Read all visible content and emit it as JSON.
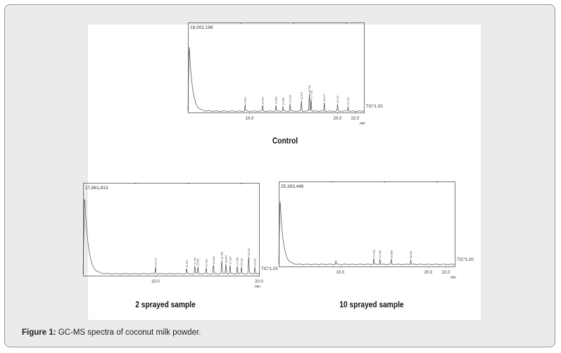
{
  "caption": {
    "label": "Figure 1:",
    "text": " GC-MS spectra of coconut milk powder."
  },
  "colors": {
    "frame_bg": "#ebebeb",
    "frame_border": "#9a9a9a",
    "trace": "#4a4a4a",
    "axis": "#555555"
  },
  "chart_data": [
    {
      "type": "line",
      "title": "Control",
      "max_label": "18,002,198",
      "scale_label": "TIC*1.00",
      "xunit": "min",
      "xlim": [
        3.0,
        23.0
      ],
      "xticks": [
        "10.0",
        "20.0",
        "22.0"
      ],
      "xtick_values": [
        10.0,
        20.0,
        22.0
      ],
      "ylim": [
        0,
        100
      ],
      "baseline": 1.5,
      "solvent_peak": 75,
      "peaks": [
        {
          "x": 9.5,
          "y": 7,
          "label": "9.613"
        },
        {
          "x": 11.5,
          "y": 6,
          "label": "11.533"
        },
        {
          "x": 13.0,
          "y": 6,
          "label": "13.062"
        },
        {
          "x": 13.8,
          "y": 5,
          "label": "13.896"
        },
        {
          "x": 14.6,
          "y": 8,
          "label": "14.615"
        },
        {
          "x": 15.9,
          "y": 11,
          "label": "15.876"
        },
        {
          "x": 16.8,
          "y": 19,
          "label": "16.783"
        },
        {
          "x": 17.0,
          "y": 13,
          "label": "17.011"
        },
        {
          "x": 18.5,
          "y": 9,
          "label": "18.474"
        },
        {
          "x": 20.0,
          "y": 7,
          "label": "20.143"
        },
        {
          "x": 21.2,
          "y": 5,
          "label": "21.176"
        }
      ]
    },
    {
      "type": "line",
      "title": "2 sprayed sample",
      "max_label": "17,861,813",
      "scale_label": "TIC*1.00",
      "xunit": "min",
      "xlim": [
        3.0,
        20.0
      ],
      "xticks": [
        "10.0",
        "20.0"
      ],
      "xtick_values": [
        10.0,
        20.0
      ],
      "ylim": [
        0,
        100
      ],
      "baseline": 2.0,
      "solvent_peak": 85,
      "peaks": [
        {
          "x": 10.0,
          "y": 7,
          "label": "10.174"
        },
        {
          "x": 13.0,
          "y": 5,
          "label": "13.181"
        },
        {
          "x": 13.8,
          "y": 8,
          "label": "13.787"
        },
        {
          "x": 14.1,
          "y": 7,
          "label": "14.067"
        },
        {
          "x": 14.9,
          "y": 6,
          "label": "14.932"
        },
        {
          "x": 15.6,
          "y": 9,
          "label": "15.636"
        },
        {
          "x": 16.4,
          "y": 14,
          "label": "16.406"
        },
        {
          "x": 16.8,
          "y": 10,
          "label": "16.854"
        },
        {
          "x": 17.2,
          "y": 9,
          "label": "17.207"
        },
        {
          "x": 17.9,
          "y": 8,
          "label": "17.905"
        },
        {
          "x": 18.3,
          "y": 7,
          "label": "18.322"
        },
        {
          "x": 19.0,
          "y": 18,
          "label": "19.013"
        },
        {
          "x": 19.6,
          "y": 7,
          "label": "19.637"
        }
      ]
    },
    {
      "type": "line",
      "title": "10 sprayed sample",
      "max_label": "25,383,446",
      "scale_label": "TIC*1.00",
      "xunit": "min",
      "xlim": [
        3.0,
        23.0
      ],
      "xticks": [
        "10.0",
        "20.0",
        "22.0"
      ],
      "xtick_values": [
        10.0,
        20.0,
        22.0
      ],
      "ylim": [
        0,
        100
      ],
      "baseline": 2.5,
      "solvent_peak": 78,
      "peaks": [
        {
          "x": 9.5,
          "y": 4,
          "label": ""
        },
        {
          "x": 13.8,
          "y": 7,
          "label": "13.811"
        },
        {
          "x": 14.5,
          "y": 6,
          "label": "14.485"
        },
        {
          "x": 15.8,
          "y": 6,
          "label": "15.808"
        },
        {
          "x": 18.0,
          "y": 5,
          "label": "18.015"
        }
      ]
    }
  ]
}
